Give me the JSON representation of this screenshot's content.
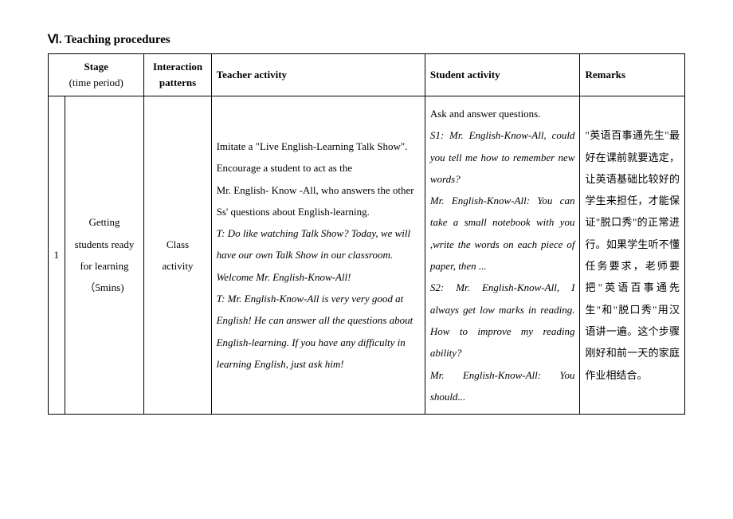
{
  "heading": "Ⅵ. Teaching procedures",
  "headers": {
    "stage_main": "Stage",
    "stage_sub": "(time period)",
    "interaction_main": "Interaction",
    "interaction_sub": "patterns",
    "teacher": "Teacher activity",
    "student": "Student activity",
    "remarks": "Remarks"
  },
  "row1": {
    "num": "1",
    "stage_line1": "Getting",
    "stage_line2": "students ready",
    "stage_line3": "for learning",
    "stage_line4": "（5mins)",
    "interaction_line1": "Class",
    "interaction_line2": "activity",
    "teacher_p1": "Imitate a \"Live English-Learning Talk Show\". Encourage a student to act as the",
    "teacher_p2": "Mr. English- Know -All, who answers the other Ss' questions about English-learning.",
    "teacher_p3_italic": "T: Do like watching Talk Show? Today, we will have our own Talk Show in our classroom. Welcome Mr. English-Know-All!",
    "teacher_p4_italic": "T: Mr. English-Know-All is very very good at English! He can answer all the questions about English-learning. If you have any difficulty in learning English, just ask him!",
    "student_p1": "Ask and answer questions.",
    "student_p2_italic": "S1: Mr. English-Know-All, could you tell me how to remember new words?",
    "student_p3_italic": "Mr. English-Know-All: You can take a small notebook with you ,write the words on each piece of paper, then ...",
    "student_p4_italic": "S2: Mr. English-Know-All, I always get low marks in reading. How to improve my reading ability?",
    "student_p5_italic": "Mr. English-Know-All: You should...",
    "remarks_text": "\"英语百事通先生\"最好在课前就要选定，让英语基础比较好的学生来担任，才能保证\"脱口秀\"的正常进行。如果学生听不懂任务要求，老师要把\"英语百事通先生\"和\"脱口秀\"用汉语讲一遍。这个步骤刚好和前一天的家庭作业相结合。"
  }
}
